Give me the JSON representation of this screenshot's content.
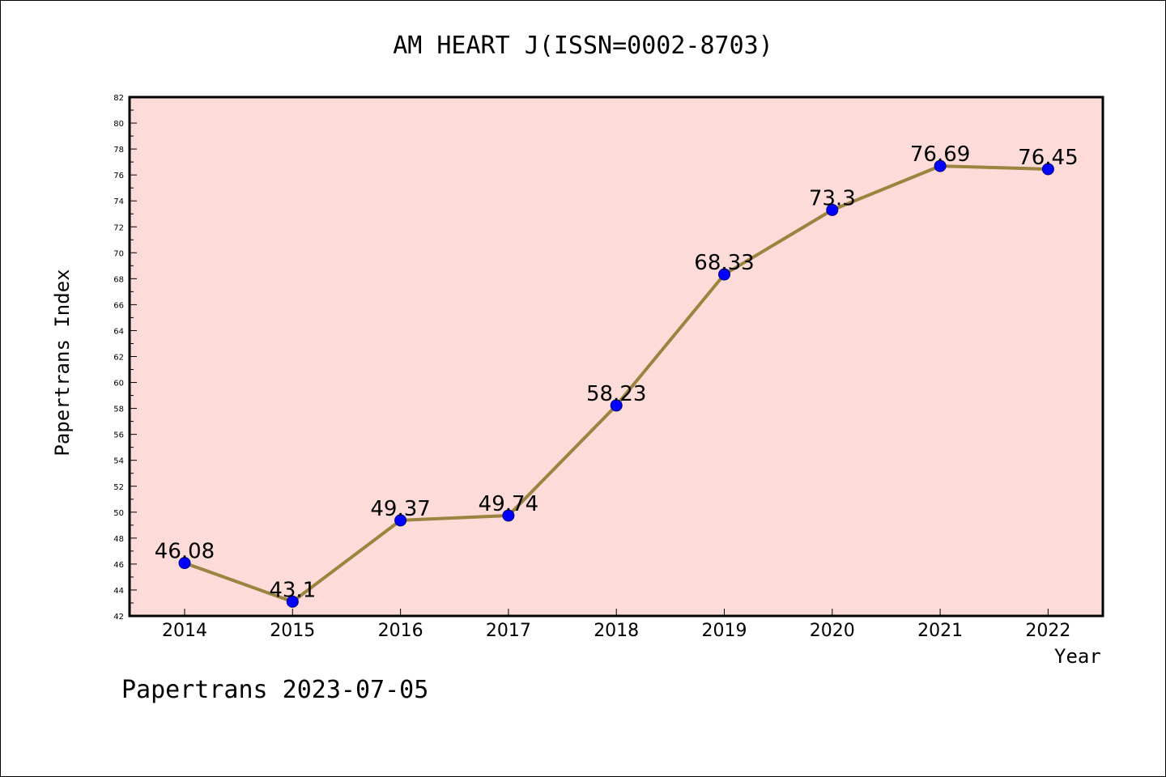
{
  "chart_data": {
    "type": "line",
    "title": "AM HEART J(ISSN=0002-8703)",
    "xlabel": "Year",
    "ylabel": "Papertrans Index",
    "categories": [
      "2014",
      "2015",
      "2016",
      "2017",
      "2018",
      "2019",
      "2020",
      "2021",
      "2022"
    ],
    "values": [
      46.08,
      43.1,
      49.37,
      49.74,
      58.23,
      68.33,
      73.3,
      76.69,
      76.45
    ],
    "data_labels": [
      "46.08",
      "43.1",
      "49.37",
      "49.74",
      "58.23",
      "68.33",
      "73.3",
      "76.69",
      "76.45"
    ],
    "ylim": [
      42,
      82
    ],
    "y_major_ticks": [
      42,
      44,
      46,
      48,
      50,
      52,
      54,
      56,
      58,
      60,
      62,
      64,
      66,
      68,
      70,
      72,
      74,
      76,
      78,
      80,
      82
    ],
    "grid": false,
    "legend": "none",
    "colors": {
      "plot_background": "#fddbd9",
      "line": "#9b8340",
      "marker": "#0000ff",
      "axis": "#000000"
    }
  },
  "footer": "Papertrans 2023-07-05"
}
